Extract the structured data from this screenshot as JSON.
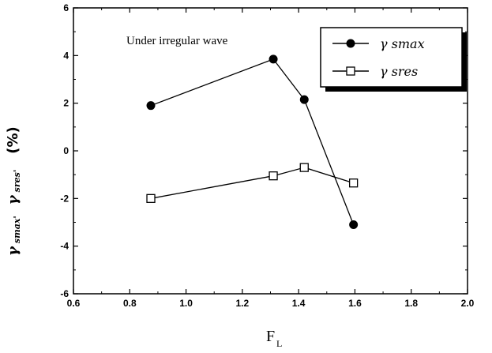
{
  "chart_data": {
    "type": "line",
    "annotation": "Under irregular wave",
    "xlabel_main": "F",
    "xlabel_sub": "L",
    "ylabel": "γ smax', γ sres' (%)",
    "ylabel_parts": {
      "sym1": "γ",
      "sub1": "smax'",
      "sym2": "γ",
      "sub2": "sres'",
      "unit": "(%)"
    },
    "xlim": [
      0.6,
      2.0
    ],
    "ylim": [
      -6,
      6
    ],
    "xticks": [
      "0.6",
      "0.8",
      "1.0",
      "1.2",
      "1.4",
      "1.6",
      "1.8",
      "2.0"
    ],
    "yticks": [
      "-6",
      "-4",
      "-2",
      "0",
      "2",
      "4",
      "6"
    ],
    "grid": false,
    "legend_position": "top-right",
    "series": [
      {
        "name": "γ smax",
        "marker": "filled-circle",
        "x": [
          0.875,
          1.31,
          1.42,
          1.595
        ],
        "y": [
          1.9,
          3.85,
          2.15,
          -3.1
        ]
      },
      {
        "name": "γ sres",
        "marker": "open-square",
        "x": [
          0.875,
          1.31,
          1.42,
          1.595
        ],
        "y": [
          -2.0,
          -1.05,
          -0.7,
          -1.35
        ]
      }
    ]
  }
}
